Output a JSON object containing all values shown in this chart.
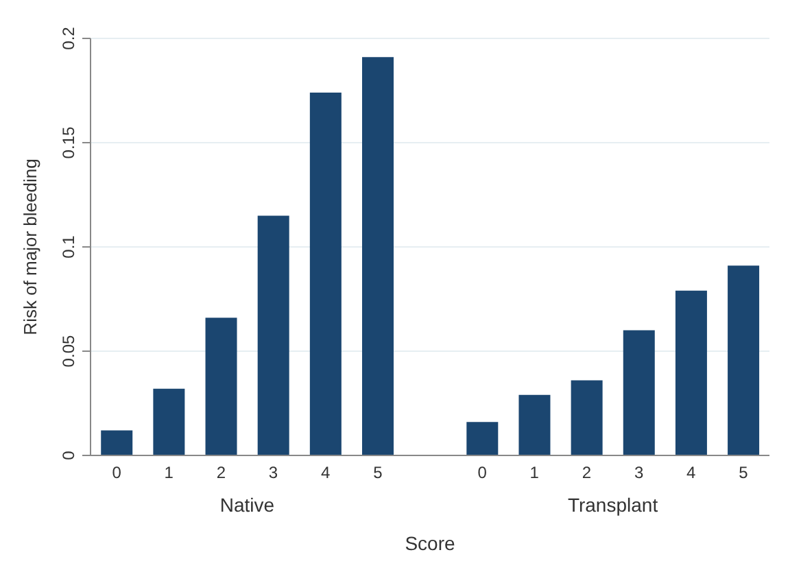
{
  "chart_data": {
    "type": "bar",
    "xlabel": "Score",
    "ylabel": "Risk of major bleeding",
    "categories": [
      "0",
      "1",
      "2",
      "3",
      "4",
      "5",
      null,
      "0",
      "1",
      "2",
      "3",
      "4",
      "5"
    ],
    "values": [
      0.012,
      0.032,
      0.066,
      0.115,
      0.174,
      0.191,
      null,
      0.016,
      0.029,
      0.036,
      0.06,
      0.079,
      0.091
    ],
    "color": "#1b4670",
    "annotations": [
      "Native",
      "Transplant"
    ],
    "ylim": [
      0,
      0.2
    ],
    "yticks": [
      0,
      0.05,
      0.1,
      0.15,
      0.2
    ],
    "grid": "y"
  }
}
